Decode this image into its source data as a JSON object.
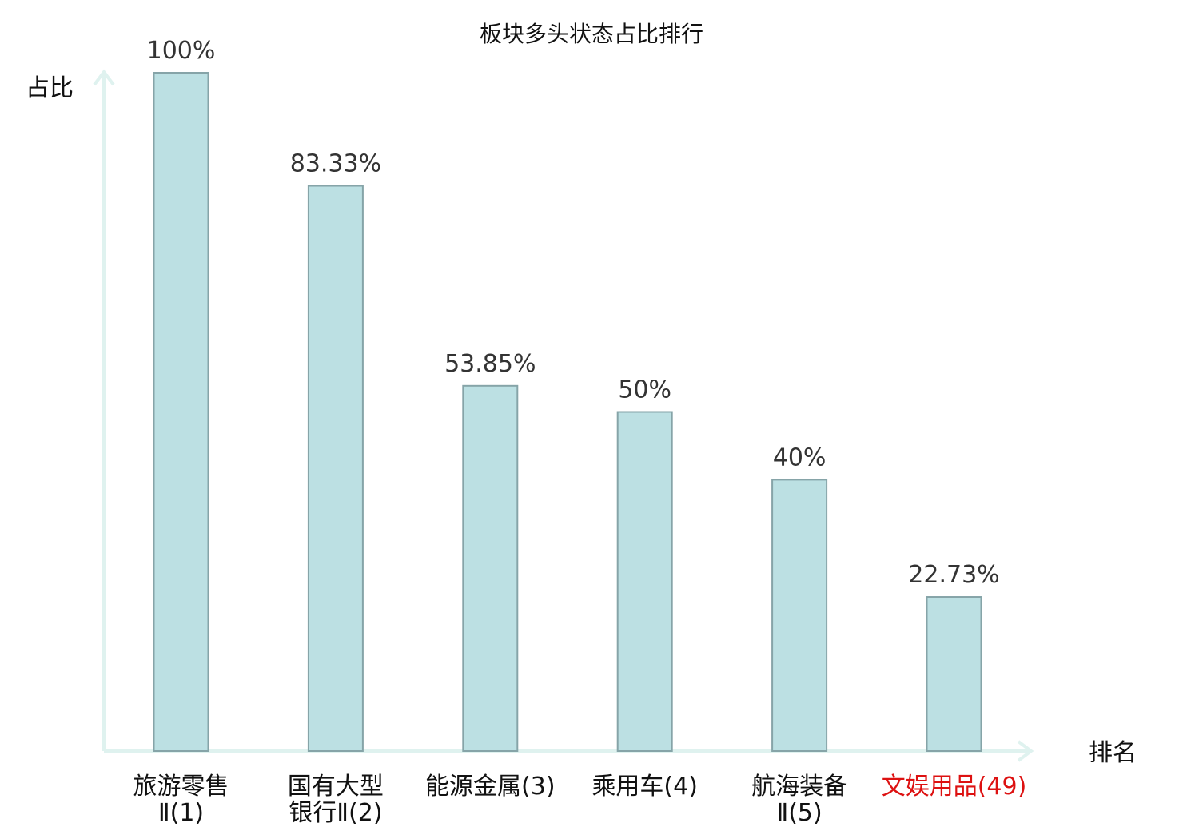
{
  "chart_data": {
    "type": "bar",
    "title": "板块多头状态占比排行",
    "ylabel": "占比",
    "xlabel": "排名",
    "categories": [
      {
        "lines": [
          "旅游零售",
          "Ⅱ(1)"
        ],
        "highlight": false
      },
      {
        "lines": [
          "国有大型",
          "银行Ⅱ(2)"
        ],
        "highlight": false
      },
      {
        "lines": [
          "能源金属(3)"
        ],
        "highlight": false
      },
      {
        "lines": [
          "乘用车(4)"
        ],
        "highlight": false
      },
      {
        "lines": [
          "航海装备",
          "Ⅱ(5)"
        ],
        "highlight": false
      },
      {
        "lines": [
          "文娱用品(49)"
        ],
        "highlight": true
      }
    ],
    "values": [
      100,
      83.33,
      53.85,
      50,
      40,
      22.73
    ],
    "value_labels": [
      "100%",
      "83.33%",
      "53.85%",
      "50%",
      "40%",
      "22.73%"
    ],
    "ylim": [
      0,
      100
    ],
    "grid": false,
    "colors": {
      "bar_fill": "#bce0e3",
      "bar_stroke": "#86a4a8",
      "axis": "#dff2ef",
      "highlight_text": "#dd1111"
    }
  }
}
